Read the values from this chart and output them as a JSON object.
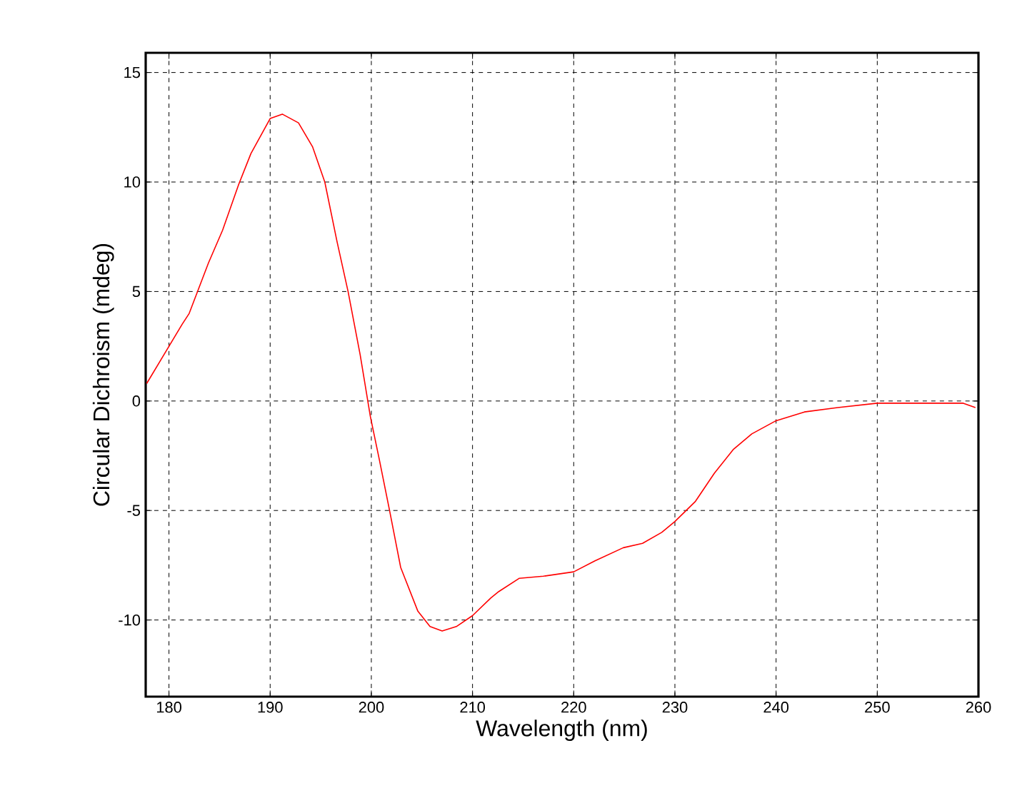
{
  "chart_data": {
    "type": "line",
    "xlabel": "Wavelength (nm)",
    "ylabel": "Circular Dichroism (mdeg)",
    "xlim": [
      177.7,
      260
    ],
    "ylim": [
      -13.5,
      15.9
    ],
    "xticks": [
      180,
      190,
      200,
      210,
      220,
      230,
      240,
      250,
      260
    ],
    "yticks": [
      -10,
      -5,
      0,
      5,
      10,
      15
    ],
    "grid": true,
    "series": [
      {
        "color": "#ff0000",
        "x": [
          177.8,
          181.3,
          182.0,
          183.9,
          185.3,
          186.9,
          188.1,
          190.0,
          191.2,
          192.8,
          194.2,
          195.4,
          196.6,
          197.7,
          198.9,
          199.9,
          200.8,
          201.8,
          202.9,
          204.6,
          205.8,
          207.0,
          208.4,
          210.0,
          211.8,
          212.6,
          214.6,
          217.0,
          220.0,
          222.1,
          224.9,
          226.8,
          228.7,
          230.0,
          232.0,
          233.9,
          235.8,
          237.6,
          240.0,
          242.8,
          246.1,
          250.0,
          255.1,
          258.5,
          259.7
        ],
        "values": [
          0.8,
          3.5,
          4.0,
          6.3,
          7.8,
          9.9,
          11.3,
          12.9,
          13.1,
          12.7,
          11.6,
          10.0,
          7.3,
          5.0,
          2.1,
          -0.7,
          -2.7,
          -5.0,
          -7.6,
          -9.6,
          -10.3,
          -10.5,
          -10.3,
          -9.8,
          -9.0,
          -8.7,
          -8.1,
          -8.0,
          -7.8,
          -7.3,
          -6.7,
          -6.5,
          -6.0,
          -5.5,
          -4.6,
          -3.3,
          -2.2,
          -1.5,
          -0.9,
          -0.5,
          -0.3,
          -0.1,
          -0.1,
          -0.1,
          -0.3
        ]
      }
    ]
  }
}
